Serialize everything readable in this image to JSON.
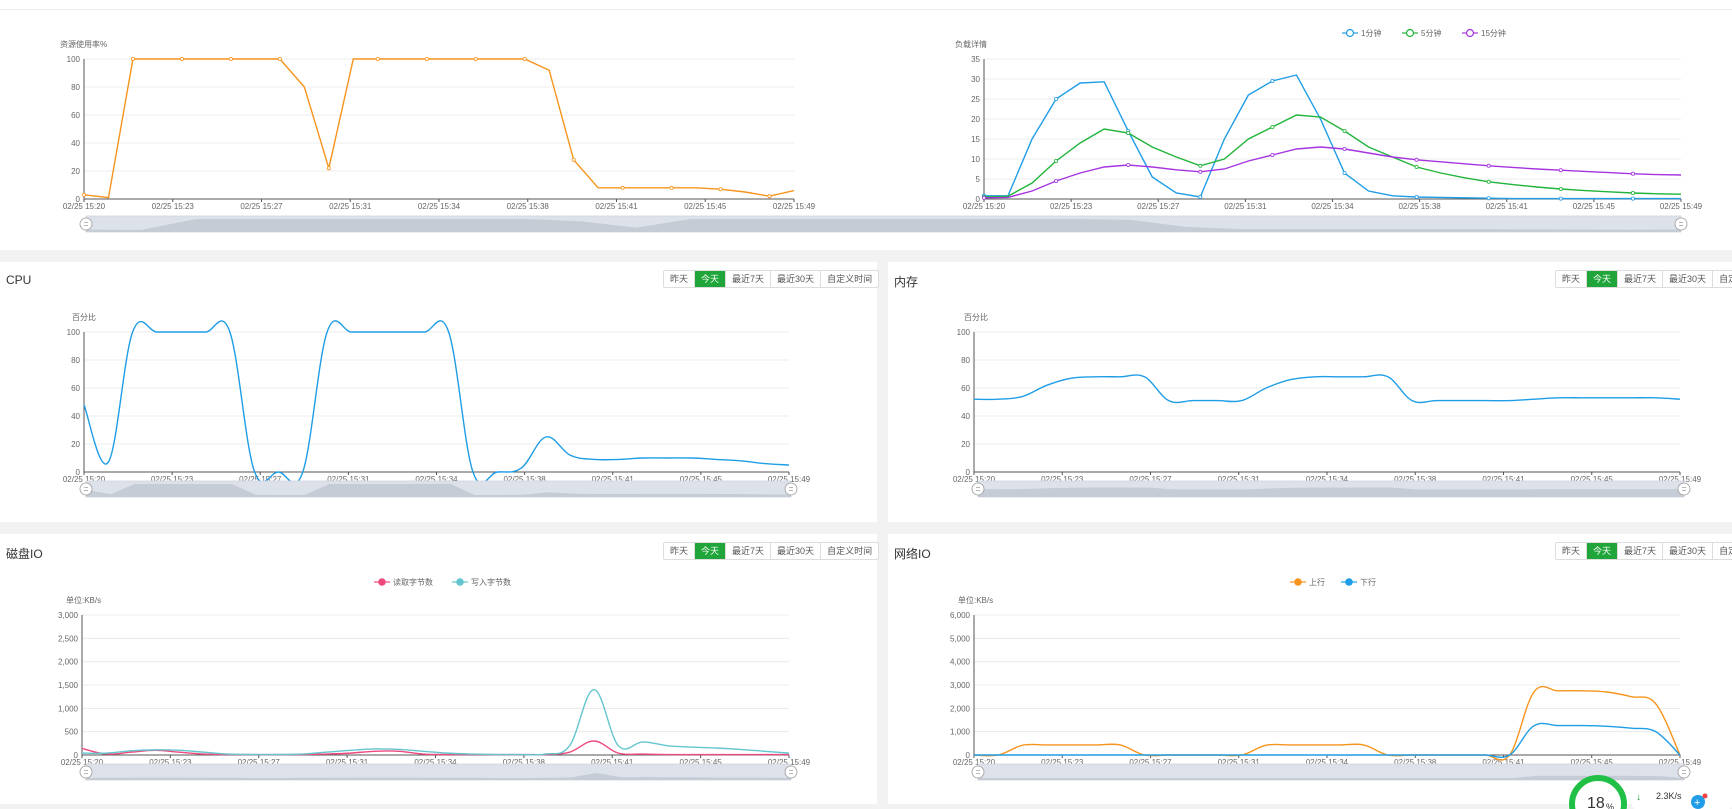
{
  "time_labels": [
    "02/25 15:20",
    "02/25 15:23",
    "02/25 15:27",
    "02/25 15:31",
    "02/25 15:34",
    "02/25 15:38",
    "02/25 15:41",
    "02/25 15:45",
    "02/25 15:49"
  ],
  "range_buttons": [
    "昨天",
    "今天",
    "最近7天",
    "最近30天",
    "自定义时间"
  ],
  "colors": {
    "accent": "#20a53a",
    "orange": "#f7941d",
    "blue": "#1f9de6",
    "green": "#20b43a",
    "purple": "#a534e0",
    "pink": "#ee4a7c",
    "teal": "#64c5cf",
    "grid": "#e6e6e6"
  },
  "charts": {
    "resource": {
      "unit": "资源使用率%",
      "chart_data": {
        "type": "line",
        "x": [
          "15:20",
          "15:21",
          "15:22",
          "15:23",
          "15:24",
          "15:25",
          "15:26",
          "15:27",
          "15:28",
          "15:29",
          "15:30",
          "15:31",
          "15:32",
          "15:33",
          "15:34",
          "15:35",
          "15:36",
          "15:37",
          "15:38",
          "15:39",
          "15:40",
          "15:41",
          "15:42",
          "15:43",
          "15:44",
          "15:45",
          "15:46",
          "15:47",
          "15:48",
          "15:49"
        ],
        "series": [
          {
            "values": [
              3,
              1,
              100,
              100,
              100,
              100,
              100,
              100,
              100,
              80,
              22,
              100,
              100,
              100,
              100,
              100,
              100,
              100,
              100,
              92,
              28,
              8,
              8,
              8,
              8,
              8,
              7,
              5,
              2,
              6
            ]
          }
        ],
        "ylim": [
          0,
          100
        ]
      }
    },
    "load": {
      "unit": "负载详情",
      "legend": [
        "1分钟",
        "5分钟",
        "15分钟"
      ],
      "chart_data": {
        "type": "line",
        "x": [
          "15:20",
          "15:21",
          "15:22",
          "15:23",
          "15:24",
          "15:25",
          "15:26",
          "15:27",
          "15:28",
          "15:29",
          "15:30",
          "15:31",
          "15:32",
          "15:33",
          "15:34",
          "15:35",
          "15:36",
          "15:37",
          "15:38",
          "15:39",
          "15:40",
          "15:41",
          "15:42",
          "15:43",
          "15:44",
          "15:45",
          "15:46",
          "15:47",
          "15:48",
          "15:49"
        ],
        "series": [
          {
            "name": "1分钟",
            "values": [
              0.8,
              0.8,
              15,
              25,
              29,
              29.3,
              17,
              5.5,
              1.5,
              0.5,
              15,
              26,
              29.5,
              31,
              20,
              6.5,
              2,
              0.8,
              0.5,
              0.4,
              0.3,
              0.2,
              0.1,
              0.1,
              0.1,
              0.1,
              0.1,
              0.1,
              0.1,
              0.1
            ]
          },
          {
            "name": "5分钟",
            "values": [
              0.5,
              0.7,
              4,
              9.5,
              14,
              17.5,
              16.5,
              13,
              10.5,
              8.3,
              10,
              15,
              18,
              21,
              20.5,
              17,
              13,
              10.5,
              8,
              6.5,
              5.3,
              4.3,
              3.6,
              3,
              2.5,
              2.1,
              1.8,
              1.5,
              1.3,
              1.2
            ]
          },
          {
            "name": "15分钟",
            "values": [
              0.3,
              0.4,
              2,
              4.5,
              6.5,
              8,
              8.5,
              8,
              7.3,
              6.8,
              7.5,
              9.5,
              11,
              12.5,
              13,
              12.5,
              11.5,
              10.5,
              9.8,
              9.3,
              8.8,
              8.3,
              7.9,
              7.5,
              7.2,
              6.9,
              6.6,
              6.3,
              6.1,
              6.0
            ]
          }
        ],
        "ylim": [
          0,
          35
        ]
      }
    },
    "cpu": {
      "title": "CPU",
      "unit": "百分比",
      "active_index": 1,
      "chart_data": {
        "type": "line",
        "x": [
          "15:20",
          "15:21",
          "15:22",
          "15:23",
          "15:24",
          "15:25",
          "15:26",
          "15:27",
          "15:28",
          "15:29",
          "15:30",
          "15:31",
          "15:32",
          "15:33",
          "15:34",
          "15:35",
          "15:36",
          "15:37",
          "15:38",
          "15:39",
          "15:40",
          "15:41",
          "15:42",
          "15:43",
          "15:44",
          "15:45",
          "15:46",
          "15:47",
          "15:48",
          "15:49"
        ],
        "series": [
          {
            "values": [
              48,
              7,
              100,
              100,
              100,
              100,
              100,
              1,
              0,
              0,
              100,
              100,
              100,
              100,
              100,
              100,
              0,
              0,
              3,
              25,
              12,
              9,
              9,
              10,
              10,
              10,
              9,
              8,
              6,
              5
            ]
          }
        ],
        "ylim": [
          0,
          100
        ]
      }
    },
    "memory": {
      "title": "内存",
      "unit": "百分比",
      "active_index": 1,
      "chart_data": {
        "type": "line",
        "x": [
          "15:20",
          "15:21",
          "15:22",
          "15:23",
          "15:24",
          "15:25",
          "15:26",
          "15:27",
          "15:28",
          "15:29",
          "15:30",
          "15:31",
          "15:32",
          "15:33",
          "15:34",
          "15:35",
          "15:36",
          "15:37",
          "15:38",
          "15:39",
          "15:40",
          "15:41",
          "15:42",
          "15:43",
          "15:44",
          "15:45",
          "15:46",
          "15:47",
          "15:48",
          "15:49"
        ],
        "series": [
          {
            "values": [
              52,
              52,
              54,
              62,
              67,
              68,
              68,
              68,
              51,
              51,
              51,
              51,
              60,
              66,
              68,
              68,
              68,
              68,
              51,
              51,
              51,
              51,
              51,
              52,
              53,
              53,
              53,
              53,
              53,
              52
            ]
          }
        ],
        "ylim": [
          0,
          100
        ]
      }
    },
    "disk": {
      "title": "磁盘IO",
      "unit": "单位:KB/s",
      "active_index": 1,
      "legend": [
        "读取字节数",
        "写入字节数"
      ],
      "chart_data": {
        "type": "line",
        "x": [
          "15:20",
          "15:21",
          "15:22",
          "15:23",
          "15:24",
          "15:25",
          "15:26",
          "15:27",
          "15:28",
          "15:29",
          "15:30",
          "15:31",
          "15:32",
          "15:33",
          "15:34",
          "15:35",
          "15:36",
          "15:37",
          "15:38",
          "15:39",
          "15:40",
          "15:41",
          "15:42",
          "15:43",
          "15:44",
          "15:45",
          "15:46",
          "15:47",
          "15:48",
          "15:49"
        ],
        "series": [
          {
            "name": "读取字节数",
            "values": [
              140,
              20,
              60,
              100,
              60,
              20,
              10,
              10,
              10,
              10,
              20,
              40,
              80,
              80,
              20,
              10,
              10,
              10,
              10,
              10,
              60,
              300,
              40,
              20,
              10,
              10,
              10,
              10,
              10,
              10
            ]
          },
          {
            "name": "写入字节数",
            "values": [
              40,
              40,
              90,
              110,
              100,
              60,
              20,
              10,
              10,
              20,
              60,
              100,
              130,
              120,
              80,
              40,
              20,
              10,
              10,
              20,
              200,
              1400,
              200,
              280,
              200,
              170,
              150,
              120,
              80,
              40
            ]
          }
        ],
        "ylim": [
          0,
          3000
        ]
      }
    },
    "network": {
      "title": "网络IO",
      "unit": "单位:KB/s",
      "active_index": 1,
      "legend": [
        "上行",
        "下行"
      ],
      "chart_data": {
        "type": "line",
        "x": [
          "15:20",
          "15:21",
          "15:22",
          "15:23",
          "15:24",
          "15:25",
          "15:26",
          "15:27",
          "15:28",
          "15:29",
          "15:30",
          "15:31",
          "15:32",
          "15:33",
          "15:34",
          "15:35",
          "15:36",
          "15:37",
          "15:38",
          "15:39",
          "15:40",
          "15:41",
          "15:42",
          "15:43",
          "15:44",
          "15:45",
          "15:46",
          "15:47",
          "15:48",
          "15:49"
        ],
        "series": [
          {
            "name": "上行",
            "values": [
              0,
              0,
              420,
              430,
              430,
              430,
              430,
              0,
              0,
              0,
              0,
              0,
              420,
              430,
              430,
              430,
              430,
              0,
              0,
              0,
              0,
              0,
              0,
              2700,
              2750,
              2750,
              2700,
              2500,
              2200,
              0
            ]
          },
          {
            "name": "下行",
            "values": [
              0,
              0,
              0,
              0,
              0,
              0,
              0,
              0,
              0,
              0,
              0,
              0,
              0,
              0,
              0,
              0,
              0,
              0,
              0,
              0,
              0,
              0,
              0,
              1250,
              1260,
              1260,
              1230,
              1150,
              1000,
              0
            ]
          }
        ],
        "ylim": [
          0,
          6000
        ]
      }
    }
  },
  "speed_widget": {
    "percent": "18",
    "percent_unit": "%",
    "download_speed": "2.3K/s"
  }
}
